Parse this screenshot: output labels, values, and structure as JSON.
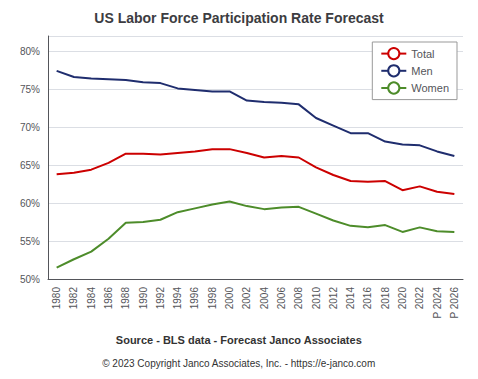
{
  "chart_data": {
    "type": "line",
    "title": "US Labor Force Participation Rate Forecast",
    "annotations": [
      "Source - BLS data - Forecast Janco Associates",
      "© 2023 Copyright Janco Associates, Inc. - https://e-janco.com"
    ],
    "categories": [
      "1980",
      "1982",
      "1984",
      "1986",
      "1988",
      "1990",
      "1992",
      "1994",
      "1996",
      "1998",
      "2000",
      "2002",
      "2004",
      "2006",
      "2008",
      "2010",
      "2012",
      "2014",
      "2016",
      "2018",
      "2020",
      "2022",
      "P 2024",
      "P 2026"
    ],
    "series": [
      {
        "name": "Total",
        "color": "#cc0000",
        "values": [
          63.8,
          64.0,
          64.4,
          65.3,
          66.5,
          66.5,
          66.4,
          66.6,
          66.8,
          67.1,
          67.1,
          66.6,
          66.0,
          66.2,
          66.0,
          64.7,
          63.7,
          62.9,
          62.8,
          62.9,
          61.7,
          62.2,
          61.5,
          61.2
        ]
      },
      {
        "name": "Men",
        "color": "#1f2d6e",
        "values": [
          77.4,
          76.6,
          76.4,
          76.3,
          76.2,
          75.9,
          75.8,
          75.1,
          74.9,
          74.7,
          74.7,
          73.5,
          73.3,
          73.2,
          73.0,
          71.2,
          70.2,
          69.2,
          69.2,
          68.1,
          67.7,
          67.6,
          66.8,
          66.2
        ]
      },
      {
        "name": "Women",
        "color": "#4d8c2a",
        "values": [
          51.5,
          52.6,
          53.6,
          55.3,
          57.4,
          57.5,
          57.8,
          58.8,
          59.3,
          59.8,
          60.2,
          59.6,
          59.2,
          59.4,
          59.5,
          58.6,
          57.7,
          57.0,
          56.8,
          57.1,
          56.2,
          56.8,
          56.3,
          56.2
        ]
      }
    ],
    "ylim": [
      50,
      82
    ],
    "yticks": [
      {
        "value": 50,
        "label": "50%"
      },
      {
        "value": 55,
        "label": "55%"
      },
      {
        "value": 60,
        "label": "60%"
      },
      {
        "value": 65,
        "label": "65%"
      },
      {
        "value": 70,
        "label": "70%"
      },
      {
        "value": 75,
        "label": "75%"
      },
      {
        "value": 80,
        "label": "80%"
      }
    ],
    "grid": true,
    "legend": "upper right"
  }
}
